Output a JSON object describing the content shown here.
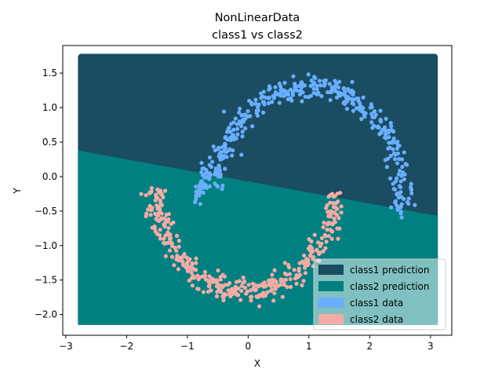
{
  "chart_data": {
    "type": "scatter",
    "title_line1": "NonLinearData",
    "title_line2": "class1 vs  class2",
    "xlabel": "X",
    "ylabel": "Y",
    "xlim": [
      -3.05,
      3.35
    ],
    "ylim": [
      -2.3,
      1.9
    ],
    "xticks": [
      -3,
      -2,
      -1,
      0,
      1,
      2,
      3
    ],
    "yticks": [
      -2.0,
      -1.5,
      -1.0,
      -0.5,
      0.0,
      0.5,
      1.0,
      1.5
    ],
    "ytick_labels": [
      "−2.0",
      "−1.5",
      "−1.0",
      "−0.5",
      "0.0",
      "0.5",
      "1.0",
      "1.5"
    ],
    "xtick_labels": [
      "−3",
      "−2",
      "−1",
      "0",
      "1",
      "2",
      "3"
    ],
    "decision_region": {
      "x_range": [
        -2.8,
        3.12
      ],
      "y_range": [
        -2.15,
        1.78
      ],
      "boundary_line": [
        [
          -2.8,
          0.38
        ],
        [
          3.12,
          -0.57
        ]
      ],
      "class1_color": "#1a4c62",
      "class2_color": "#008080"
    },
    "class1_arc": {
      "center": [
        1.0,
        -0.25
      ],
      "radius": 1.55,
      "angle_start_deg": -10,
      "angle_end_deg": 178,
      "extra_segment": [
        [
          -0.85,
          -0.3
        ],
        [
          -0.65,
          0.1
        ]
      ],
      "color": "#6aaeff"
    },
    "class2_arc": {
      "center": [
        -0.05,
        -0.15
      ],
      "radius": 1.5,
      "angle_start_deg": 182,
      "angle_end_deg": 357,
      "color": "#f4aba6"
    },
    "legend": {
      "position": "lower right",
      "entries": [
        {
          "label": "class1 prediction",
          "color": "#1a4c62"
        },
        {
          "label": "class2 prediction",
          "color": "#008080"
        },
        {
          "label": "class1 data",
          "color": "#6aaeff"
        },
        {
          "label": "class2 data",
          "color": "#f4aba6"
        }
      ]
    }
  }
}
